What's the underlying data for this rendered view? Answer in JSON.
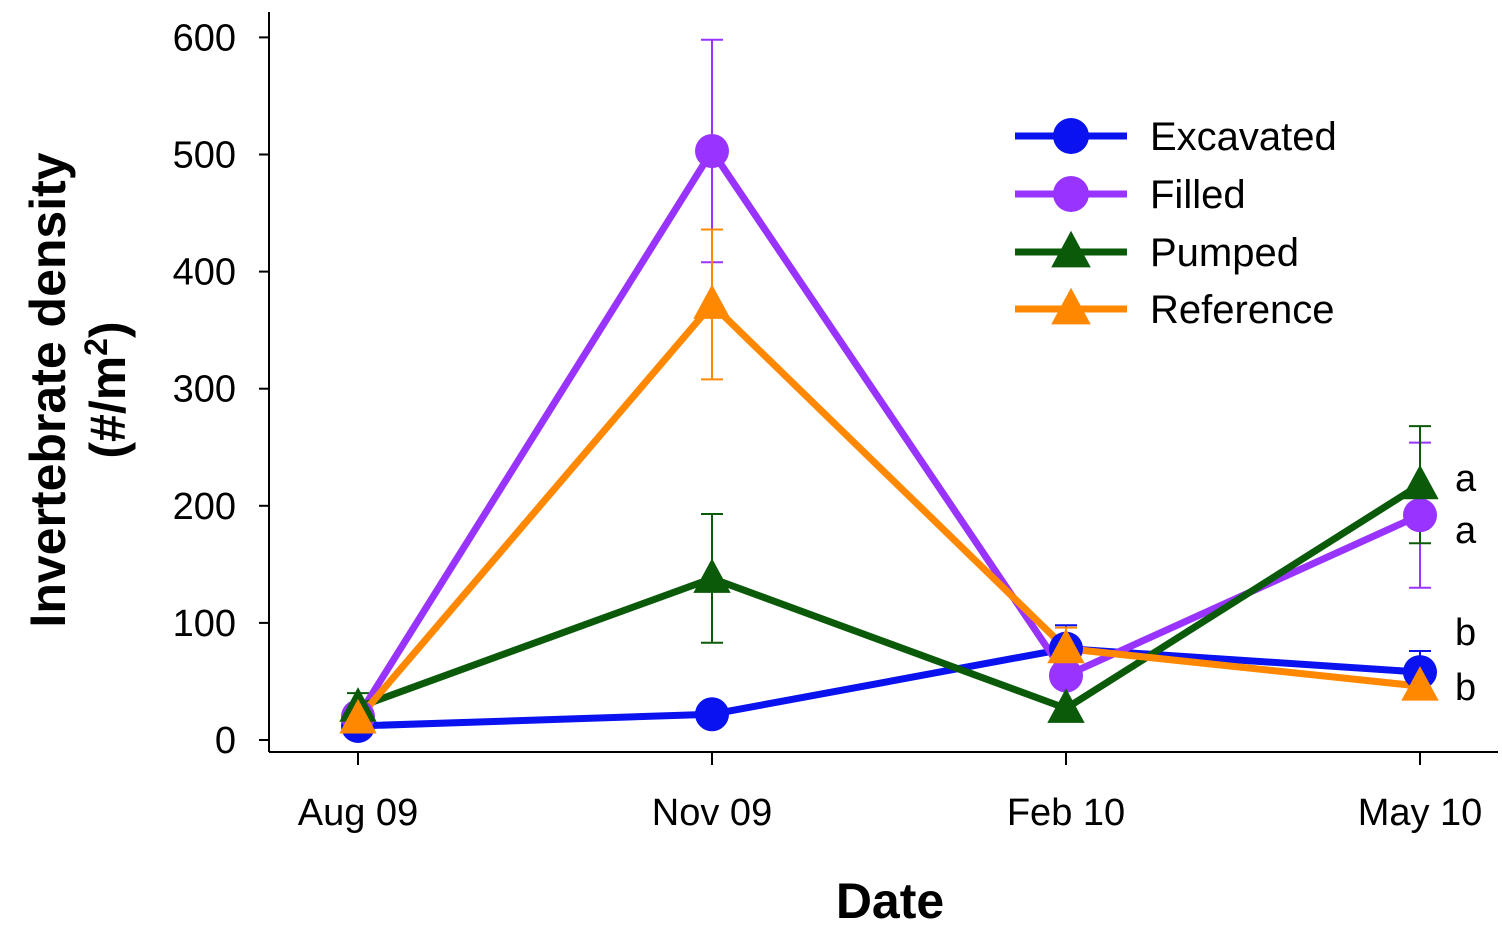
{
  "chart_data": {
    "type": "line",
    "xlabel": "Date",
    "ylabel_line1": "Invertebrate density",
    "ylabel_line2_pre": "(#/m",
    "ylabel_line2_sup": "2",
    "ylabel_line2_post": ")",
    "categories": [
      "Aug 09",
      "Nov 09",
      "Feb 10",
      "May 10"
    ],
    "ylim": [
      0,
      600
    ],
    "yticks": [
      "0",
      "100",
      "200",
      "300",
      "400",
      "500",
      "600"
    ],
    "ytick_values": [
      0,
      100,
      200,
      300,
      400,
      500,
      600
    ],
    "grid": false,
    "legend_position": "top-right",
    "series": [
      {
        "name": "Excavated",
        "color": "#0a12f0",
        "marker": "circle",
        "values": [
          12,
          22,
          78,
          58
        ],
        "errors": [
          null,
          null,
          20,
          18
        ]
      },
      {
        "name": "Filled",
        "color": "#9933ff",
        "marker": "circle",
        "values": [
          20,
          503,
          55,
          192
        ],
        "errors": [
          null,
          95,
          null,
          62
        ]
      },
      {
        "name": "Pumped",
        "color": "#0a5a0a",
        "marker": "triangle",
        "values": [
          28,
          138,
          27,
          218
        ],
        "errors": [
          12,
          55,
          null,
          50
        ]
      },
      {
        "name": "Reference",
        "color": "#ff8800",
        "marker": "triangle",
        "values": [
          18,
          372,
          78,
          46
        ],
        "errors": [
          null,
          64,
          18,
          null
        ]
      }
    ],
    "annotations": [
      {
        "text": "a",
        "series": "Pumped"
      },
      {
        "text": "a",
        "series": "Filled"
      },
      {
        "text": "b",
        "series": "Excavated"
      },
      {
        "text": "b",
        "series": "Reference"
      }
    ]
  }
}
